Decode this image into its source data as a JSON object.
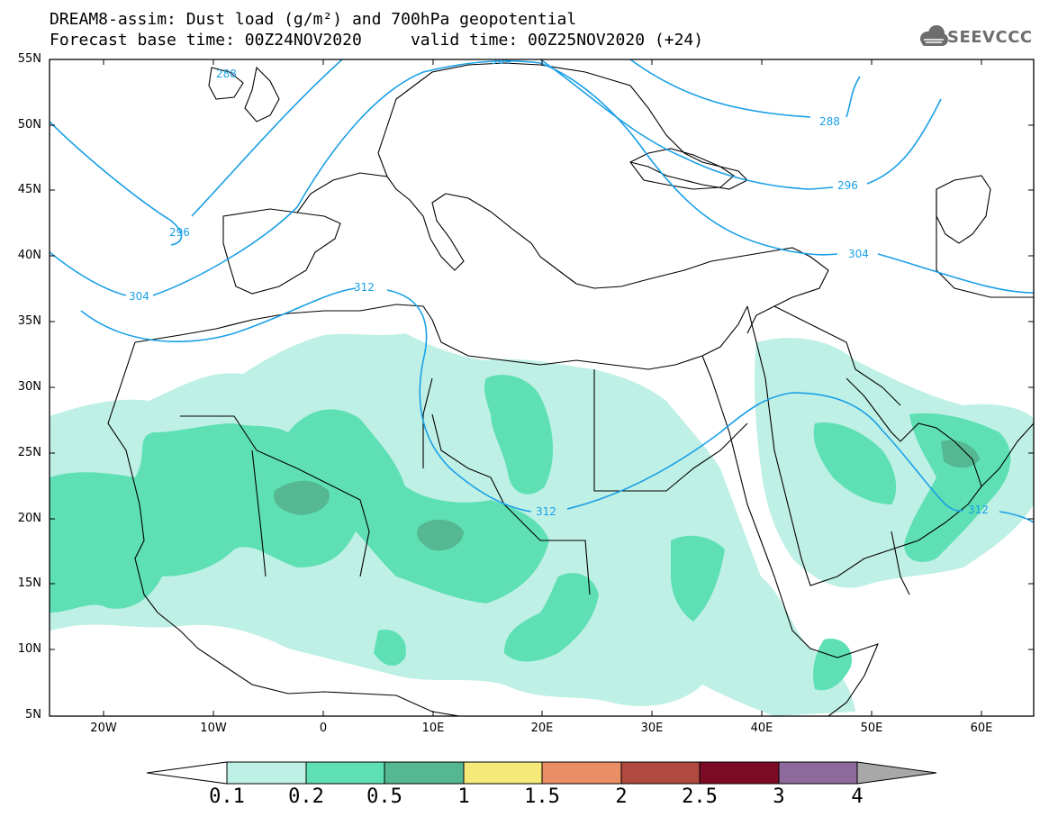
{
  "header": {
    "title_line1": "DREAM8-assim: Dust load (g/m²) and 700hPa geopotential",
    "title_line2": "Forecast base time: 00Z24NOV2020     valid time: 00Z25NOV2020 (+24)",
    "logo_text": "SEEVCCC"
  },
  "map": {
    "lat_labels": [
      "55N",
      "50N",
      "45N",
      "40N",
      "35N",
      "30N",
      "25N",
      "20N",
      "15N",
      "10N",
      "5N"
    ],
    "lon_labels": [
      "20W",
      "10W",
      "0",
      "10E",
      "20E",
      "30E",
      "40E",
      "50E",
      "60E"
    ],
    "contour_labels": [
      "288",
      "296",
      "304",
      "312",
      "304",
      "288",
      "296",
      "304",
      "312",
      "312"
    ],
    "contour_color": "#1aa0e6",
    "coast_color": "#000000"
  },
  "colorbar": {
    "labels": [
      "0.1",
      "0.2",
      "0.5",
      "1",
      "1.5",
      "2",
      "2.5",
      "3",
      "4"
    ],
    "colors": [
      "#bff0e6",
      "#5ee0b4",
      "#55b893",
      "#f5e97a",
      "#ea8e66",
      "#b04a3e",
      "#7d0a25",
      "#8e6a9c"
    ],
    "under_color": "#ffffff",
    "over_color": "#a8a8a8"
  }
}
